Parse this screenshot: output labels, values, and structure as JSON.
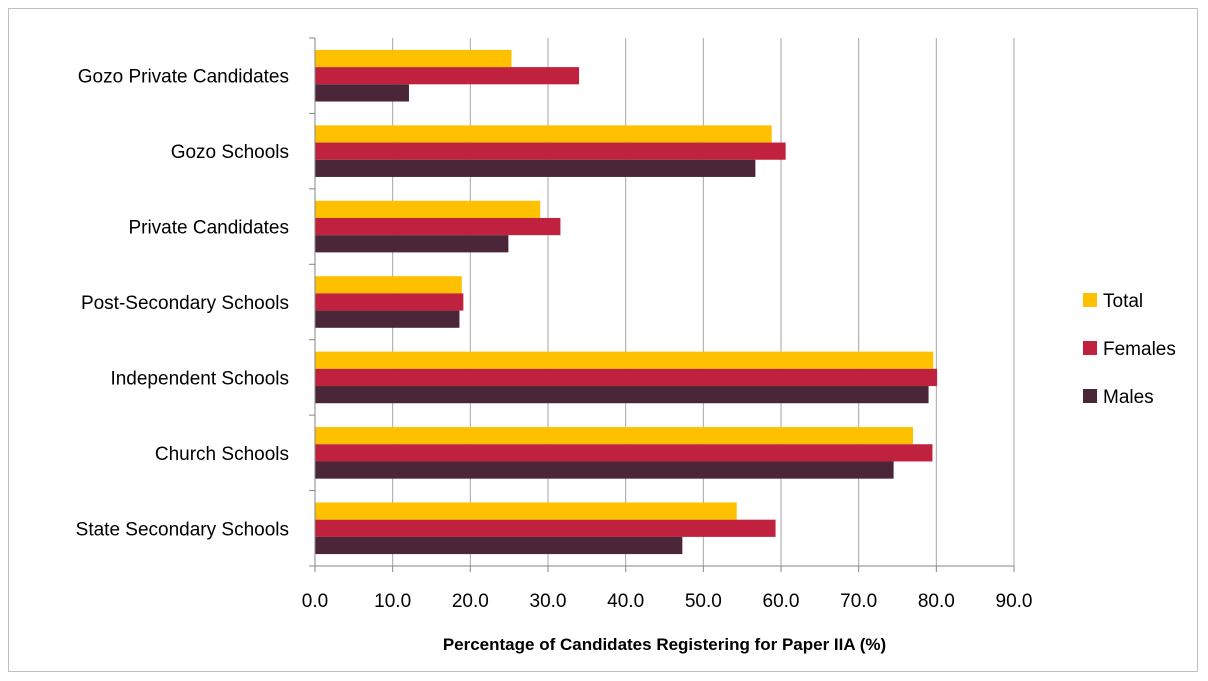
{
  "chart_data": {
    "type": "bar",
    "orientation": "horizontal",
    "categories": [
      "State Secondary Schools",
      "Church Schools",
      "Independent Schools",
      "Post-Secondary Schools",
      "Private Candidates",
      "Gozo Schools",
      "Gozo Private Candidates"
    ],
    "series": [
      {
        "name": "Total",
        "color": "#FFC000",
        "values": [
          54.3,
          77.0,
          79.6,
          18.9,
          29.0,
          58.8,
          25.3
        ]
      },
      {
        "name": "Females",
        "color": "#C0213F",
        "values": [
          59.3,
          79.5,
          80.1,
          19.1,
          31.6,
          60.6,
          34.0
        ]
      },
      {
        "name": "Males",
        "color": "#4A2638",
        "values": [
          47.3,
          74.5,
          79.0,
          18.6,
          24.9,
          56.7,
          12.1
        ]
      }
    ],
    "xlim": [
      0,
      90
    ],
    "xticks": [
      "0.0",
      "10.0",
      "20.0",
      "30.0",
      "40.0",
      "50.0",
      "60.0",
      "70.0",
      "80.0",
      "90.0"
    ],
    "xlabel": "Percentage of Candidates Registering for Paper IIA (%)",
    "grid": true,
    "legend_position": "right"
  }
}
